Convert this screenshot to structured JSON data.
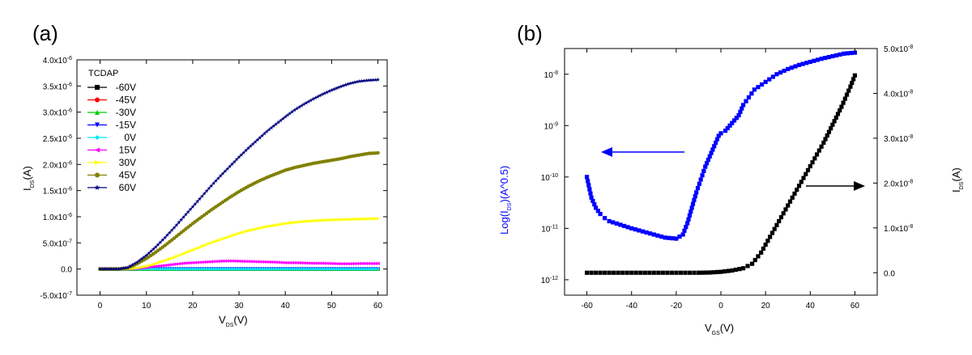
{
  "chart_data": [
    {
      "panel_label": "(a)",
      "type": "line",
      "xlabel": {
        "main": "V",
        "sub": "DS",
        "unit": "(V)"
      },
      "ylabel": {
        "main": "I",
        "sub": "DS",
        "unit": "(A)"
      },
      "xlim": [
        -5,
        62
      ],
      "ylim": [
        -5e-07,
        4e-06
      ],
      "xticks": [
        0,
        10,
        20,
        30,
        40,
        50,
        60
      ],
      "yticks": [
        {
          "value": -5e-07,
          "mant": "-5.0x10",
          "exp": "-7"
        },
        {
          "value": 0,
          "mant": "0.0",
          "exp": ""
        },
        {
          "value": 5e-07,
          "mant": "5.0x10",
          "exp": "-7"
        },
        {
          "value": 1e-06,
          "mant": "1.0x10",
          "exp": "-6"
        },
        {
          "value": 1.5e-06,
          "mant": "1.5x10",
          "exp": "-6"
        },
        {
          "value": 2e-06,
          "mant": "2.0x10",
          "exp": "-6"
        },
        {
          "value": 2.5e-06,
          "mant": "2.5x10",
          "exp": "-6"
        },
        {
          "value": 3e-06,
          "mant": "3.0x10",
          "exp": "-6"
        },
        {
          "value": 3.5e-06,
          "mant": "3.5x10",
          "exp": "-6"
        },
        {
          "value": 4e-06,
          "mant": "4.0x10",
          "exp": "-6"
        }
      ],
      "legend_title": "TCDAP",
      "x": [
        0,
        2,
        4,
        6,
        8,
        10,
        12,
        14,
        16,
        18,
        20,
        22,
        24,
        26,
        28,
        30,
        32,
        34,
        36,
        38,
        40,
        42,
        44,
        46,
        48,
        50,
        52,
        54,
        56,
        58,
        60
      ],
      "series": [
        {
          "name": "-60V",
          "color": "#000000",
          "marker": "square",
          "values": [
            0,
            0,
            0,
            0,
            0,
            0,
            0,
            0,
            0,
            0,
            0,
            0,
            0,
            0,
            0,
            0,
            0,
            0,
            0,
            0,
            0,
            0,
            0,
            0,
            0,
            0,
            0,
            0,
            0,
            0,
            0
          ]
        },
        {
          "name": "-45V",
          "color": "#ff0000",
          "marker": "circle",
          "values": [
            0,
            0,
            0,
            0,
            0,
            0,
            0,
            0,
            0,
            0,
            0,
            0,
            0,
            0,
            0,
            0,
            0,
            0,
            0,
            0,
            0,
            0,
            0,
            0,
            0,
            0,
            0,
            0,
            0,
            0,
            0
          ]
        },
        {
          "name": "-30V",
          "color": "#00cc00",
          "marker": "triangle-up",
          "values": [
            0,
            0,
            0,
            0,
            0,
            0,
            0,
            0,
            0,
            0,
            0,
            0,
            0,
            0,
            0,
            0,
            0,
            0,
            0,
            0,
            0,
            0,
            0,
            0,
            0,
            0,
            0,
            0,
            0,
            0,
            0
          ]
        },
        {
          "name": "-15V",
          "color": "#0000ff",
          "marker": "triangle-down",
          "values": [
            0,
            0,
            0,
            0,
            0,
            0,
            0,
            0,
            0,
            0,
            0,
            0,
            0,
            0,
            0,
            0,
            0,
            0,
            0,
            0,
            0,
            0,
            0,
            0,
            0,
            0,
            0,
            0,
            0,
            0,
            0
          ]
        },
        {
          "name": "0V",
          "color": "#00e5ff",
          "marker": "diamond",
          "values": [
            0,
            0,
            0,
            0,
            0,
            0,
            0,
            0,
            0,
            0,
            0,
            0,
            0,
            0,
            0,
            0,
            0,
            0,
            0,
            0,
            0,
            0,
            0,
            0,
            0,
            0,
            0,
            0,
            0,
            0,
            0
          ]
        },
        {
          "name": "15V",
          "color": "#ff00ff",
          "marker": "triangle-left",
          "values": [
            0,
            0,
            0,
            1e-09,
            1e-08,
            3e-08,
            5e-08,
            7e-08,
            9e-08,
            1.1e-07,
            1.2e-07,
            1.3e-07,
            1.4e-07,
            1.5e-07,
            1.55e-07,
            1.5e-07,
            1.45e-07,
            1.4e-07,
            1.35e-07,
            1.3e-07,
            1.2e-07,
            1.2e-07,
            1.15e-07,
            1.1e-07,
            1.1e-07,
            1.05e-07,
            1e-07,
            1e-07,
            1.05e-07,
            1.05e-07,
            1.05e-07
          ]
        },
        {
          "name": "30V",
          "color": "#ffff00",
          "marker": "triangle-right",
          "values": [
            0,
            0,
            0,
            2e-09,
            2e-08,
            5e-08,
            1e-07,
            1.6e-07,
            2.2e-07,
            2.9e-07,
            3.6e-07,
            4.3e-07,
            5e-07,
            5.6e-07,
            6.2e-07,
            6.8e-07,
            7.3e-07,
            7.7e-07,
            8.1e-07,
            8.4e-07,
            8.7e-07,
            8.9e-07,
            9.1e-07,
            9.2e-07,
            9.3e-07,
            9.4e-07,
            9.45e-07,
            9.5e-07,
            9.55e-07,
            9.6e-07,
            9.65e-07
          ]
        },
        {
          "name": "45V",
          "color": "#808000",
          "marker": "circle",
          "values": [
            0,
            0,
            1e-09,
            2e-08,
            1e-07,
            2e-07,
            3.2e-07,
            4.5e-07,
            5.9e-07,
            7.3e-07,
            8.7e-07,
            1e-06,
            1.13e-06,
            1.25e-06,
            1.37e-06,
            1.48e-06,
            1.58e-06,
            1.67e-06,
            1.75e-06,
            1.82e-06,
            1.89e-06,
            1.94e-06,
            1.98e-06,
            2.02e-06,
            2.05e-06,
            2.08e-06,
            2.11e-06,
            2.15e-06,
            2.18e-06,
            2.21e-06,
            2.22e-06
          ]
        },
        {
          "name": "60V",
          "color": "#000080",
          "marker": "star",
          "values": [
            0,
            0,
            1e-09,
            3e-08,
            1.3e-07,
            2.6e-07,
            4.2e-07,
            6e-07,
            7.9e-07,
            9.9e-07,
            1.19e-06,
            1.39e-06,
            1.59e-06,
            1.78e-06,
            1.96e-06,
            2.14e-06,
            2.31e-06,
            2.47e-06,
            2.63e-06,
            2.77e-06,
            2.91e-06,
            3.04e-06,
            3.15e-06,
            3.25e-06,
            3.34e-06,
            3.42e-06,
            3.49e-06,
            3.55e-06,
            3.59e-06,
            3.61e-06,
            3.62e-06
          ]
        }
      ]
    },
    {
      "panel_label": "(b)",
      "type": "scatter",
      "xlabel": {
        "main": "V",
        "sub": "GS",
        "unit": "(V)"
      },
      "ylabel_left": {
        "pre": "Log(I",
        "sub": "DS",
        "post": ")(A^0.5)"
      },
      "ylabel_right": {
        "main": "I",
        "sub": "DS",
        "unit": "(A)"
      },
      "xlim": [
        -70,
        70
      ],
      "xticks": [
        -60,
        -40,
        -20,
        0,
        20,
        40,
        60
      ],
      "ylim_left_log10": [
        -12.3,
        -7.5
      ],
      "yticks_left": [
        {
          "value": -12,
          "mant": "10",
          "exp": "-12"
        },
        {
          "value": -11,
          "mant": "10",
          "exp": "-11"
        },
        {
          "value": -10,
          "mant": "10",
          "exp": "-10"
        },
        {
          "value": -9,
          "mant": "10",
          "exp": "-9"
        },
        {
          "value": -8,
          "mant": "10",
          "exp": "-8"
        }
      ],
      "ylim_right": [
        -5e-09,
        5e-08
      ],
      "yticks_right": [
        {
          "value": 0,
          "mant": "0.0",
          "exp": ""
        },
        {
          "value": 1e-08,
          "mant": "1.0x10",
          "exp": "-8"
        },
        {
          "value": 2e-08,
          "mant": "2.0x10",
          "exp": "-8"
        },
        {
          "value": 3e-08,
          "mant": "3.0x10",
          "exp": "-8"
        },
        {
          "value": 4e-08,
          "mant": "4.0x10",
          "exp": "-8"
        },
        {
          "value": 5e-08,
          "mant": "5.0x10",
          "exp": "-8"
        }
      ],
      "series": [
        {
          "name": "Log(IDS)",
          "axis": "left",
          "scale": "log",
          "color": "#0000ff",
          "x": [
            -60,
            -58,
            -56,
            -54,
            -52,
            -50,
            -45,
            -40,
            -35,
            -30,
            -25,
            -20,
            -17,
            -15,
            -13,
            -11,
            -9,
            -7,
            -5,
            -3,
            -1,
            0,
            2,
            4,
            6,
            8,
            10,
            15,
            20,
            25,
            30,
            35,
            40,
            45,
            50,
            55,
            60
          ],
          "y": [
            -10.0,
            -10.4,
            -10.6,
            -10.72,
            -10.8,
            -10.86,
            -10.93,
            -11.0,
            -11.06,
            -11.12,
            -11.18,
            -11.2,
            -11.12,
            -10.9,
            -10.6,
            -10.3,
            -10.05,
            -9.8,
            -9.6,
            -9.4,
            -9.2,
            -9.15,
            -9.1,
            -9.0,
            -8.9,
            -8.8,
            -8.6,
            -8.3,
            -8.15,
            -8.0,
            -7.9,
            -7.82,
            -7.76,
            -7.7,
            -7.65,
            -7.6,
            -7.58
          ]
        },
        {
          "name": "IDS",
          "axis": "right",
          "scale": "linear",
          "color": "#000000",
          "x": [
            -60,
            -50,
            -40,
            -30,
            -20,
            -10,
            -5,
            0,
            5,
            10,
            14,
            18,
            22,
            26,
            30,
            34,
            38,
            42,
            46,
            50,
            54,
            58,
            60
          ],
          "y": [
            0,
            0,
            0,
            0,
            0,
            0,
            5e-11,
            2e-10,
            5e-10,
            1e-09,
            2e-09,
            4.5e-09,
            8e-09,
            1.15e-08,
            1.5e-08,
            1.85e-08,
            2.2e-08,
            2.55e-08,
            2.9e-08,
            3.3e-08,
            3.7e-08,
            4.15e-08,
            4.4e-08
          ]
        }
      ]
    }
  ]
}
